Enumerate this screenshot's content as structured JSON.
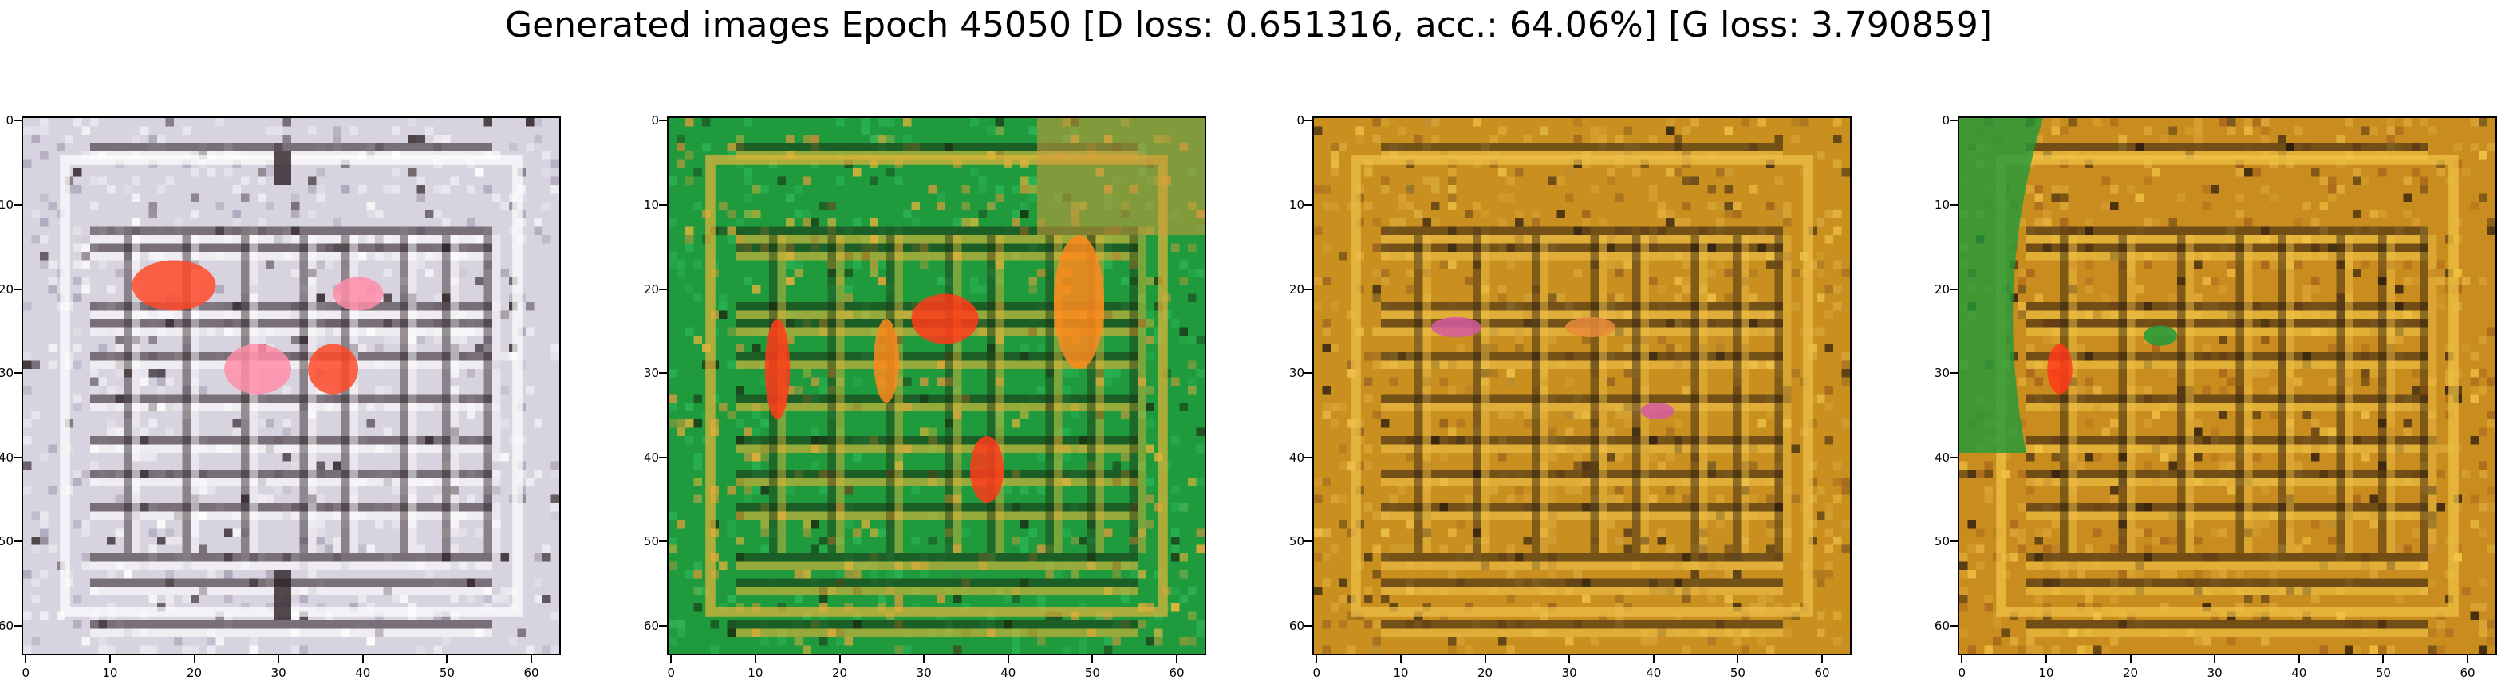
{
  "title": "Generated images Epoch 45050 [D loss: 0.651316, acc.: 64.06%] [G loss: 3.790859]",
  "axis": {
    "xlim": [
      0,
      63
    ],
    "ylim": [
      63,
      0
    ],
    "xticks": [
      "0",
      "10",
      "20",
      "30",
      "40",
      "50",
      "60"
    ],
    "yticks": [
      "0",
      "10",
      "20",
      "30",
      "40",
      "50",
      "60"
    ]
  },
  "panels": [
    {
      "name": "generated-image-1",
      "colors": {
        "base": "#d7d3df",
        "mid": "#efedf3",
        "line": "#ffffff",
        "accent": "#ff4a2a",
        "accent2": "#ff8da8",
        "dark": "#2a1e22",
        "edge": "#a8a2b6"
      }
    },
    {
      "name": "generated-image-2",
      "colors": {
        "base": "#1f9b3e",
        "mid": "#2bb455",
        "line": "#e6b43a",
        "accent": "#ff3b1a",
        "accent2": "#ff8a1c",
        "dark": "#1a2e12",
        "edge": "#d19a3a"
      }
    },
    {
      "name": "generated-image-3",
      "colors": {
        "base": "#c9901f",
        "mid": "#d9a83a",
        "line": "#f0c24a",
        "accent": "#d45aa0",
        "accent2": "#e88a3a",
        "dark": "#2b1d10",
        "edge": "#9a6420"
      }
    },
    {
      "name": "generated-image-4",
      "colors": {
        "base": "#c98d1f",
        "mid": "#dca636",
        "line": "#f2c446",
        "accent": "#ff3b1a",
        "accent2": "#1f9a3a",
        "dark": "#2a1a0e",
        "edge": "#a8641c"
      }
    }
  ]
}
